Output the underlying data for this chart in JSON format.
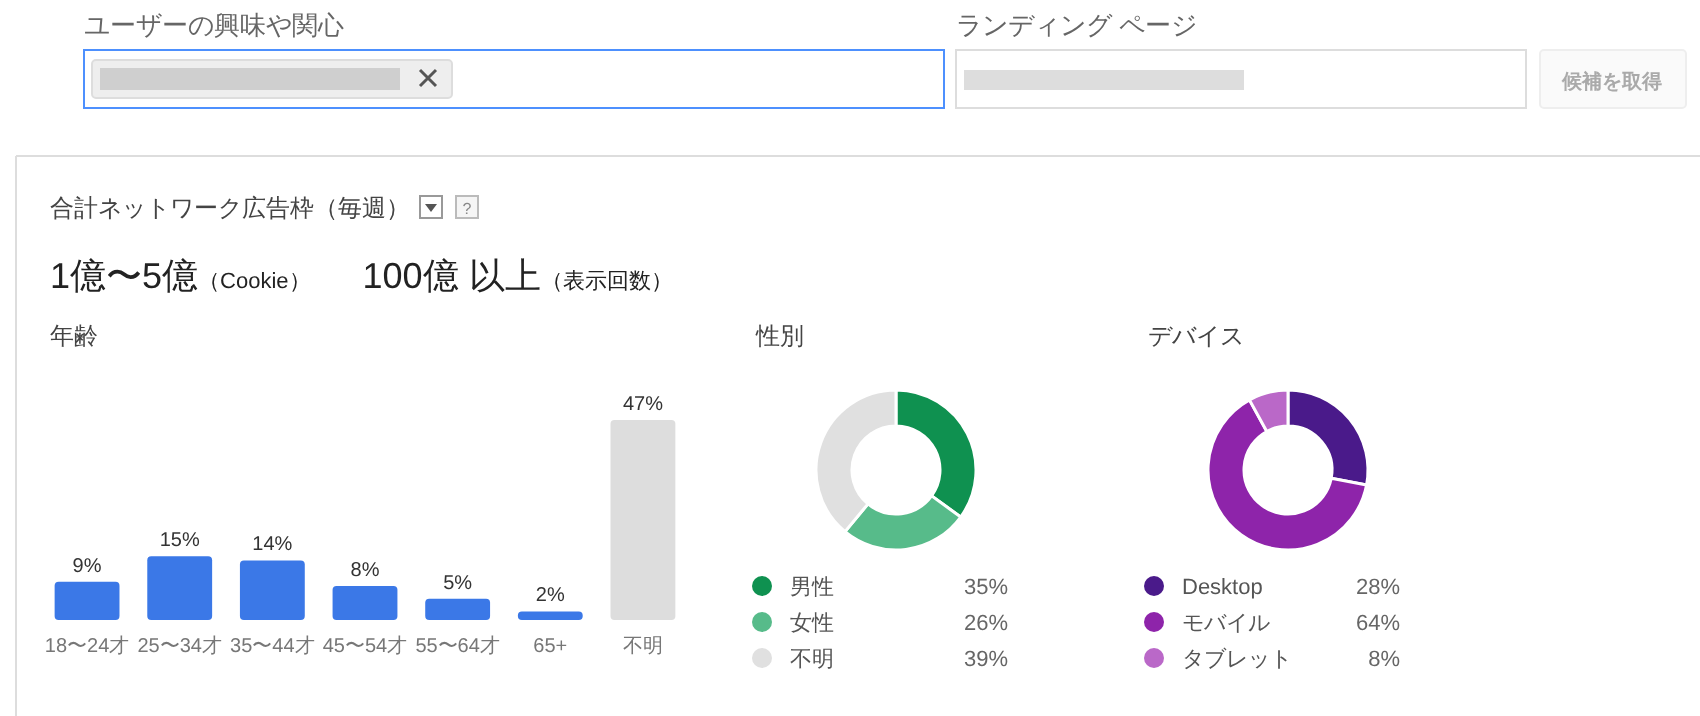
{
  "chart_data": [
    {
      "type": "other",
      "title": "合計ネットワーク広告枠（毎週）",
      "annotations": [
        "ユーザーの興味や関心",
        "ランディング ページ",
        "候補を取得",
        "1億〜5億",
        "（Cookie）",
        "100億 以上",
        "（表示回数）",
        "?"
      ]
    },
    {
      "type": "bar",
      "title": "年齢",
      "categories": [
        "18〜24才",
        "25〜34才",
        "35〜44才",
        "45〜54才",
        "55〜64才",
        "65+",
        "不明"
      ],
      "values": [
        9,
        15,
        14,
        8,
        5,
        2,
        47
      ],
      "colors": [
        "#3b78e7",
        "#3b78e7",
        "#3b78e7",
        "#3b78e7",
        "#3b78e7",
        "#3b78e7",
        "#dddddd"
      ],
      "value_labels": [
        "9%",
        "15%",
        "14%",
        "8%",
        "5%",
        "2%",
        "47%"
      ]
    },
    {
      "type": "donut",
      "title": "性別",
      "categories": [
        "男性",
        "女性",
        "不明"
      ],
      "values": [
        35,
        26,
        39
      ],
      "colors": [
        "#0f9150",
        "#57bb8a",
        "#e0e0e0"
      ],
      "value_labels": [
        "35%",
        "26%",
        "39%"
      ],
      "legend": "bottom"
    },
    {
      "type": "donut",
      "title": "デバイス",
      "categories": [
        "Desktop",
        "モバイル",
        "タブレット"
      ],
      "values": [
        28,
        64,
        8
      ],
      "colors": [
        "#4a1a8a",
        "#8e24aa",
        "#ba68c8"
      ],
      "value_labels": [
        "28%",
        "64%",
        "8%"
      ],
      "legend": "bottom"
    }
  ]
}
